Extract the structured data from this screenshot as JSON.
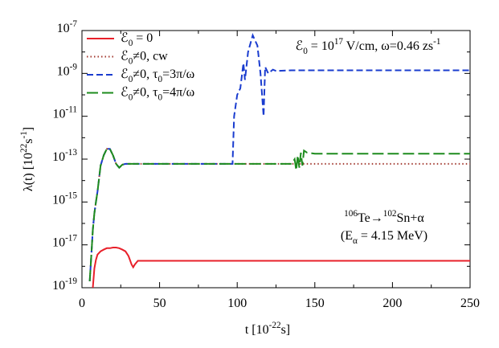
{
  "chart_data": {
    "type": "line",
    "xlabel": "t [10^{-22}s]",
    "ylabel": "λ(t) [10^{22}s^{-1}]",
    "annotations": [
      "ℰ_{0} = 10^{17} V/cm, ω=0.46 zs^{-1}",
      "^{106}Te→^{102}Sn+α",
      "(E_{α} = 4.15 MeV)"
    ],
    "yscale": "log",
    "xlim": [
      0,
      250
    ],
    "xticks": [
      0,
      50,
      100,
      150,
      200,
      250
    ],
    "ylim": [
      1e-19,
      1e-07
    ],
    "yticks": [
      {
        "value": 1e-19,
        "label": "10^{-19}"
      },
      {
        "value": 1e-17,
        "label": "10^{-17}"
      },
      {
        "value": 1e-15,
        "label": "10^{-15}"
      },
      {
        "value": 1e-13,
        "label": "10^{-13}"
      },
      {
        "value": 1e-11,
        "label": "10^{-11}"
      },
      {
        "value": 1e-09,
        "label": "10^{-9}"
      },
      {
        "value": 1e-07,
        "label": "10^{-7}"
      }
    ],
    "legend": "upper left",
    "x": [
      5,
      6,
      7,
      8,
      9,
      10,
      12,
      14,
      16,
      18,
      20,
      22,
      24,
      26,
      28,
      30,
      32,
      33,
      34,
      36,
      40,
      60,
      80,
      97,
      98,
      100,
      102,
      104,
      105,
      107,
      110,
      113,
      115,
      117,
      118,
      120,
      123,
      125,
      135,
      137,
      138,
      139,
      140,
      141,
      142,
      143,
      145,
      150,
      200,
      250
    ],
    "series": [
      {
        "name": "ℰ_{0} = 0",
        "color": "#e8202a",
        "dash": "none",
        "values": [
          null,
          null,
          1e-19,
          8e-19,
          2e-18,
          3.5e-18,
          5e-18,
          6e-18,
          7e-18,
          7e-18,
          7.5e-18,
          7.5e-18,
          7e-18,
          6e-18,
          5e-18,
          3e-18,
          1.2e-18,
          9e-19,
          1.2e-18,
          1.8e-18,
          1.8e-18,
          1.8e-18,
          1.8e-18,
          1.8e-18,
          1.8e-18,
          1.8e-18,
          1.8e-18,
          1.8e-18,
          1.8e-18,
          1.8e-18,
          1.8e-18,
          1.8e-18,
          1.8e-18,
          1.8e-18,
          1.8e-18,
          1.8e-18,
          1.8e-18,
          1.8e-18,
          1.8e-18,
          1.8e-18,
          1.8e-18,
          1.8e-18,
          1.8e-18,
          1.8e-18,
          1.8e-18,
          1.8e-18,
          1.8e-18,
          1.8e-18,
          1.8e-18,
          1.8e-18
        ]
      },
      {
        "name": "ℰ_{0}≠0, cw",
        "color": "#a33a30",
        "dash": "1.5 3",
        "values": [
          2e-19,
          3e-18,
          5e-17,
          3e-16,
          1e-15,
          3e-15,
          5e-14,
          1.5e-13,
          3e-13,
          3e-13,
          1.5e-13,
          6e-14,
          4e-14,
          5.5e-14,
          6e-14,
          6e-14,
          6e-14,
          6e-14,
          6e-14,
          6e-14,
          6e-14,
          6e-14,
          6e-14,
          6e-14,
          6e-14,
          6e-14,
          6e-14,
          6e-14,
          6e-14,
          6e-14,
          6e-14,
          6e-14,
          6e-14,
          6e-14,
          6e-14,
          6e-14,
          6e-14,
          6e-14,
          6e-14,
          6e-14,
          6e-14,
          6e-14,
          6e-14,
          6e-14,
          6e-14,
          6e-14,
          6e-14,
          6e-14,
          6e-14,
          6e-14
        ]
      },
      {
        "name": "ℰ_{0}≠0, τ_{0}=3π/ω",
        "color": "#1a3ccf",
        "dash": "8 4",
        "values": [
          2e-19,
          3e-18,
          5e-17,
          3e-16,
          1e-15,
          3e-15,
          5e-14,
          1.5e-13,
          3e-13,
          3e-13,
          1.5e-13,
          6e-14,
          4e-14,
          5.5e-14,
          6e-14,
          6e-14,
          6e-14,
          6e-14,
          6e-14,
          6e-14,
          6e-14,
          6e-14,
          6e-14,
          6e-14,
          1e-11,
          1e-10,
          2e-10,
          3e-09,
          5e-10,
          1e-08,
          6e-08,
          2e-08,
          1e-09,
          1e-11,
          2e-09,
          1e-09,
          1.5e-09,
          1.3e-09,
          1.4e-09,
          1.4e-09,
          1.4e-09,
          1.4e-09,
          1.4e-09,
          1.4e-09,
          1.4e-09,
          1.4e-09,
          1.4e-09,
          1.4e-09,
          1.4e-09,
          1.4e-09
        ]
      },
      {
        "name": "ℰ_{0}≠0, τ_{0}=4π/ω",
        "color": "#1e8c1e",
        "dash": "14 5",
        "values": [
          2e-19,
          3e-18,
          5e-17,
          3e-16,
          1e-15,
          3e-15,
          5e-14,
          1.5e-13,
          3e-13,
          3e-13,
          1.5e-13,
          6e-14,
          4e-14,
          5.5e-14,
          6e-14,
          6e-14,
          6e-14,
          6e-14,
          6e-14,
          6e-14,
          6e-14,
          6e-14,
          6e-14,
          6e-14,
          6e-14,
          6e-14,
          6e-14,
          6e-14,
          6e-14,
          6e-14,
          6e-14,
          6e-14,
          6e-14,
          6e-14,
          6e-14,
          6e-14,
          6e-14,
          6e-14,
          6e-14,
          1e-13,
          3e-14,
          1.5e-13,
          4e-14,
          2e-13,
          5e-14,
          2.5e-13,
          2e-13,
          1.8e-13,
          1.8e-13,
          1.8e-13
        ]
      }
    ]
  }
}
